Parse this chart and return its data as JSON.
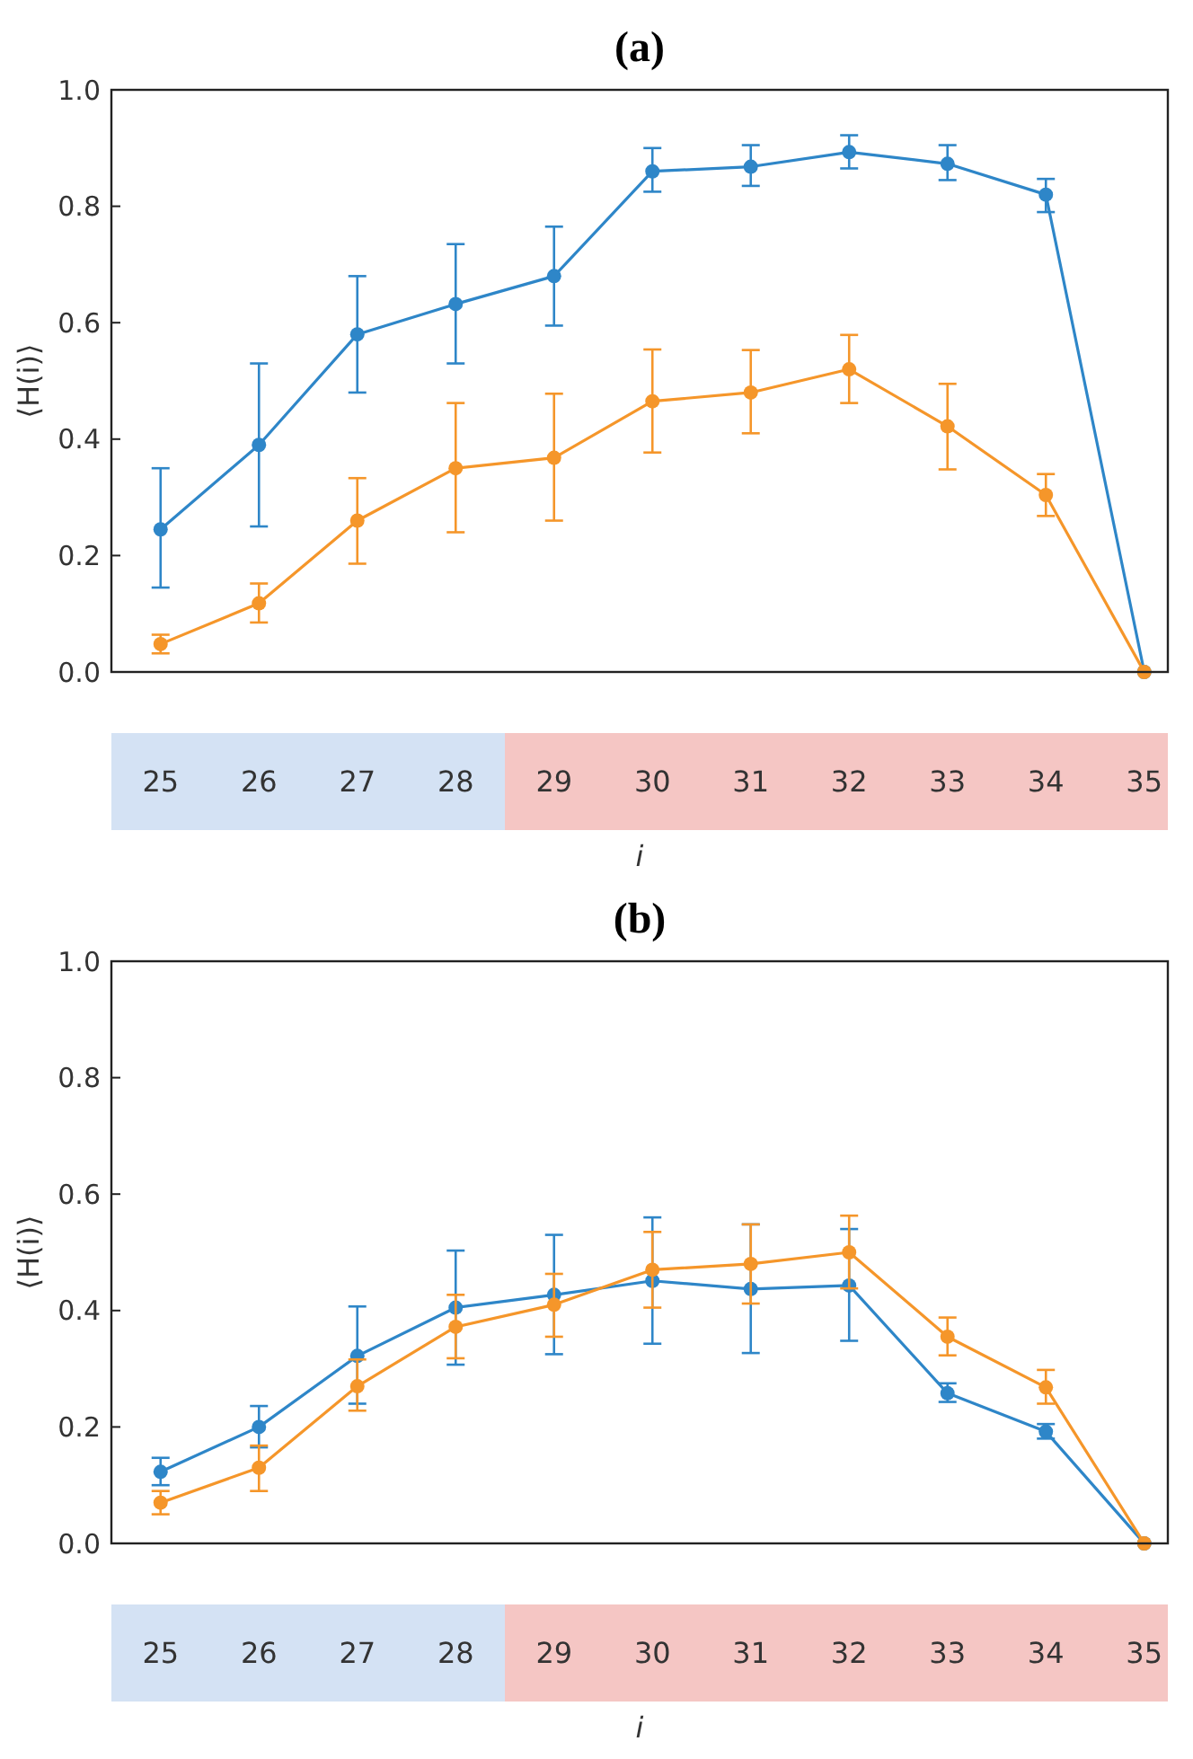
{
  "chart_data": [
    {
      "type": "line",
      "title": "(a)",
      "xlabel": "i",
      "ylabel": "⟨H(i)⟩",
      "categories": [
        "25",
        "26",
        "27",
        "28",
        "29",
        "30",
        "31",
        "32",
        "33",
        "34",
        "35"
      ],
      "ylim": [
        0,
        1
      ],
      "yticks": [
        {
          "value": 0,
          "label": "0.0"
        },
        {
          "value": 0.2,
          "label": "0.2"
        },
        {
          "value": 0.4,
          "label": "0.4"
        },
        {
          "value": 0.6,
          "label": "0.6"
        },
        {
          "value": 0.8,
          "label": "0.8"
        },
        {
          "value": 1,
          "label": "1.0"
        }
      ],
      "marker": "circle",
      "series": [
        {
          "color": "#2e86c8",
          "values": [
            0.245,
            0.39,
            0.58,
            0.632,
            0.68,
            0.86,
            0.868,
            0.893,
            0.873,
            0.82,
            0
          ],
          "errors": [
            [
              0.145,
              0.35
            ],
            [
              0.25,
              0.53
            ],
            [
              0.48,
              0.68
            ],
            [
              0.53,
              0.735
            ],
            [
              0.595,
              0.765
            ],
            [
              0.825,
              0.9
            ],
            [
              0.835,
              0.905
            ],
            [
              0.865,
              0.922
            ],
            [
              0.845,
              0.905
            ],
            [
              0.79,
              0.847
            ],
            null
          ]
        },
        {
          "color": "#f5962a",
          "values": [
            0.048,
            0.118,
            0.26,
            0.35,
            0.368,
            0.465,
            0.48,
            0.52,
            0.422,
            0.304,
            0
          ],
          "errors": [
            [
              0.032,
              0.064
            ],
            [
              0.085,
              0.152
            ],
            [
              0.186,
              0.333
            ],
            [
              0.24,
              0.462
            ],
            [
              0.26,
              0.478
            ],
            [
              0.377,
              0.554
            ],
            [
              0.41,
              0.553
            ],
            [
              0.462,
              0.579
            ],
            [
              0.348,
              0.495
            ],
            [
              0.268,
              0.34
            ],
            null
          ]
        }
      ]
    },
    {
      "type": "line",
      "title": "(b)",
      "xlabel": "i",
      "ylabel": "⟨H(i)⟩",
      "categories": [
        "25",
        "26",
        "27",
        "28",
        "29",
        "30",
        "31",
        "32",
        "33",
        "34",
        "35"
      ],
      "ylim": [
        0,
        1
      ],
      "yticks": [
        {
          "value": 0,
          "label": "0.0"
        },
        {
          "value": 0.2,
          "label": "0.2"
        },
        {
          "value": 0.4,
          "label": "0.4"
        },
        {
          "value": 0.6,
          "label": "0.6"
        },
        {
          "value": 0.8,
          "label": "0.8"
        },
        {
          "value": 1,
          "label": "1.0"
        }
      ],
      "marker": "circle",
      "series": [
        {
          "color": "#2e86c8",
          "values": [
            0.123,
            0.2,
            0.322,
            0.405,
            0.427,
            0.451,
            0.437,
            0.443,
            0.258,
            0.192,
            0
          ],
          "errors": [
            [
              0.1,
              0.147
            ],
            [
              0.165,
              0.236
            ],
            [
              0.24,
              0.407
            ],
            [
              0.307,
              0.503
            ],
            [
              0.325,
              0.53
            ],
            [
              0.343,
              0.56
            ],
            [
              0.327,
              0.548
            ],
            [
              0.348,
              0.54
            ],
            [
              0.243,
              0.275
            ],
            [
              0.18,
              0.205
            ],
            null
          ]
        },
        {
          "color": "#f5962a",
          "values": [
            0.07,
            0.13,
            0.27,
            0.372,
            0.41,
            0.47,
            0.48,
            0.5,
            0.355,
            0.268,
            0
          ],
          "errors": [
            [
              0.05,
              0.09
            ],
            [
              0.09,
              0.168
            ],
            [
              0.228,
              0.316
            ],
            [
              0.318,
              0.427
            ],
            [
              0.355,
              0.463
            ],
            [
              0.405,
              0.535
            ],
            [
              0.412,
              0.548
            ],
            [
              0.438,
              0.563
            ],
            [
              0.323,
              0.388
            ],
            [
              0.24,
              0.298
            ],
            null
          ]
        }
      ]
    }
  ]
}
